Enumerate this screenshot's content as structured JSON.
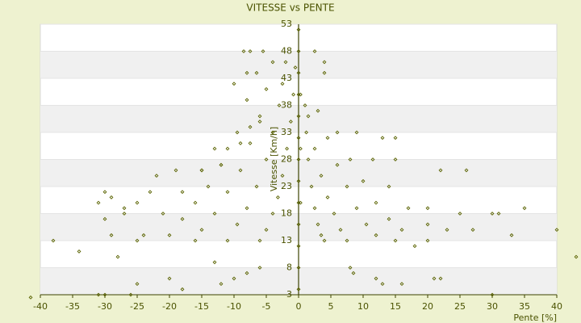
{
  "chart_data": {
    "type": "scatter",
    "title": "VITESSE vs PENTE",
    "x_label": "Pente [%]",
    "y_label": "Vitesse [Km/h]",
    "color": "#5a6300",
    "xlim": [
      -40,
      40
    ],
    "xticks": [
      -40,
      -35,
      -30,
      -25,
      -20,
      -15,
      -10,
      -5,
      0,
      5,
      10,
      15,
      20,
      25,
      30,
      35,
      40
    ],
    "ylim": [
      3,
      53
    ],
    "yticks": [
      3,
      8,
      13,
      18,
      23,
      28,
      33,
      38,
      43,
      48,
      53
    ],
    "grid": true,
    "x": [
      0,
      0,
      0,
      0,
      0,
      0,
      0,
      0,
      0,
      0,
      0,
      0,
      0,
      0.3,
      0.3,
      0.3,
      1,
      1.2,
      1.5,
      2,
      2.5,
      3,
      3.5,
      4,
      1.5,
      2.5,
      3.5,
      4.5,
      5.5,
      6.5,
      7.5,
      3,
      4.5,
      6,
      7.5,
      9,
      10.5,
      12,
      6,
      8,
      10,
      12,
      14,
      16,
      9,
      11.5,
      14,
      17,
      20,
      2.5,
      4,
      4,
      13,
      15,
      15,
      20,
      22,
      26,
      25,
      30,
      31,
      35,
      40,
      43,
      30,
      16,
      21,
      22,
      27,
      33,
      8,
      12,
      13,
      8.5,
      18,
      15,
      23,
      20,
      -0.5,
      -0.8,
      -1.2,
      -1.8,
      -2.5,
      -3.2,
      -4,
      -5,
      -6,
      -2,
      -2.5,
      -3,
      -4,
      -5,
      -6.5,
      -8,
      -9.5,
      -11,
      -4,
      -5,
      -6,
      -7.5,
      -9,
      -11,
      -13,
      -15,
      -16,
      -5.5,
      -6.5,
      -8,
      -9.5,
      -12,
      -14,
      -16,
      -18,
      -20,
      -8,
      -10,
      -13,
      -15,
      -18,
      -21,
      -24,
      -25,
      -19,
      -23,
      -27,
      -30,
      -8.5,
      -7.5,
      -30,
      -29,
      -31,
      -29,
      -28,
      -31,
      -30,
      -25,
      -26,
      -20,
      -18,
      -12,
      -10,
      -8,
      -6,
      -13,
      -34,
      -38,
      -41.5,
      -25,
      -22,
      -27,
      -15,
      -12,
      -11,
      -9,
      -7.5,
      -6
    ],
    "values": [
      4,
      8,
      12,
      16,
      20,
      24,
      28,
      32,
      36,
      40,
      44,
      48,
      52,
      20,
      30,
      40,
      38,
      33,
      28,
      23,
      19,
      16,
      14,
      13,
      36,
      30,
      25,
      21,
      18,
      15,
      13,
      37,
      32,
      27,
      23,
      19,
      16,
      14,
      33,
      28,
      24,
      20,
      17,
      15,
      33,
      28,
      23,
      19,
      16,
      48,
      46,
      44,
      32,
      32,
      28,
      19,
      26,
      26,
      18,
      18,
      18,
      19,
      15,
      10,
      3,
      5,
      6,
      6,
      15,
      14,
      8,
      6,
      5,
      7,
      12,
      13,
      15,
      13,
      45,
      40,
      35,
      30,
      25,
      21,
      18,
      15,
      13,
      46,
      42,
      38,
      33,
      28,
      23,
      19,
      16,
      13,
      46,
      41,
      36,
      31,
      26,
      22,
      18,
      15,
      13,
      48,
      44,
      39,
      33,
      27,
      23,
      20,
      17,
      14,
      44,
      42,
      30,
      26,
      22,
      18,
      14,
      13,
      26,
      22,
      19,
      17,
      48,
      48,
      22,
      21,
      20,
      14,
      10,
      3,
      3,
      5,
      3,
      6,
      4,
      5,
      6,
      7,
      8,
      9,
      11,
      13,
      2.5,
      20,
      25,
      18,
      26,
      27,
      30,
      31,
      34,
      35
    ]
  }
}
